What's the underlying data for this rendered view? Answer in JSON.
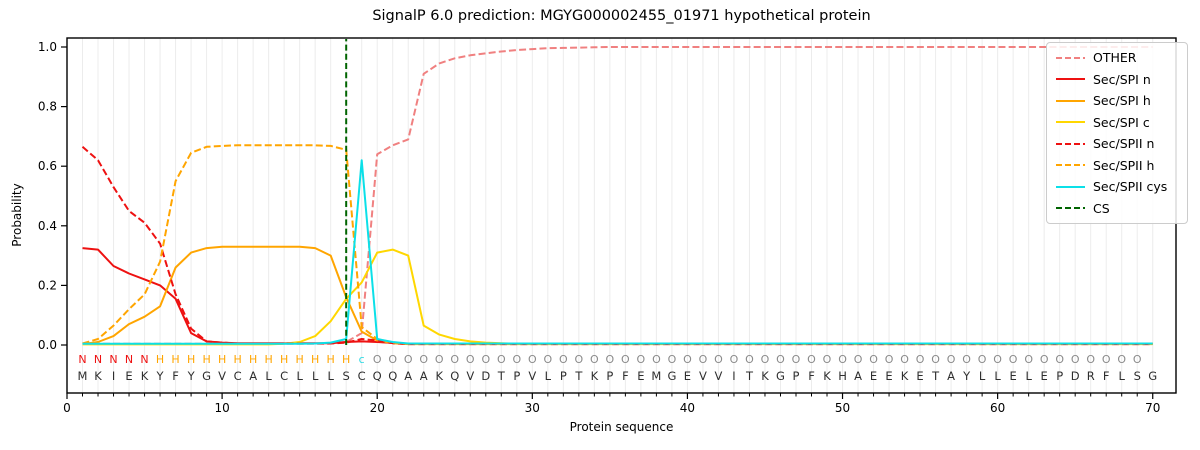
{
  "chart_data": {
    "type": "line",
    "title": "SignalP 6.0 prediction: MGYG000002455_01971 hypothetical protein",
    "xlabel": "Protein sequence",
    "ylabel": "Probability",
    "xlim": [
      0,
      71.5
    ],
    "ylim": [
      -0.16,
      1.03
    ],
    "xticks": [
      0,
      10,
      20,
      30,
      40,
      50,
      60,
      70
    ],
    "yticks": [
      0.0,
      0.2,
      0.4,
      0.6,
      0.8,
      1.0
    ],
    "grid": "vertical gridline at every residue 1-70",
    "legend_position": "upper right",
    "x_start": 1,
    "series": [
      {
        "name": "OTHER",
        "color": "#f08080",
        "dash": true,
        "values": [
          0.004,
          0.004,
          0.004,
          0.004,
          0.004,
          0.004,
          0.004,
          0.004,
          0.004,
          0.004,
          0.004,
          0.004,
          0.004,
          0.004,
          0.004,
          0.004,
          0.005,
          0.01,
          0.04,
          0.64,
          0.67,
          0.69,
          0.91,
          0.945,
          0.962,
          0.972,
          0.979,
          0.985,
          0.99,
          0.993,
          0.996,
          0.997,
          0.998,
          0.999,
          1.0,
          1.0,
          1.0,
          1.0,
          1.0,
          1.0,
          1.0,
          1.0,
          1.0,
          1.0,
          1.0,
          1.0,
          1.0,
          1.0,
          1.0,
          1.0,
          1.0,
          1.0,
          1.0,
          1.0,
          1.0,
          1.0,
          1.0,
          1.0,
          1.0,
          1.0,
          1.0,
          1.0,
          1.0,
          1.0,
          1.0,
          1.0,
          1.0,
          1.0,
          1.0,
          1.0
        ]
      },
      {
        "name": "Sec/SPI n",
        "color": "#ee1111",
        "dash": false,
        "values": [
          0.325,
          0.32,
          0.265,
          0.24,
          0.22,
          0.2,
          0.155,
          0.04,
          0.012,
          0.008,
          0.006,
          0.006,
          0.006,
          0.006,
          0.006,
          0.006,
          0.006,
          0.01,
          0.012,
          0.01,
          0.007,
          0.004,
          0.004,
          0.004,
          0.004,
          0.004,
          0.004,
          0.004,
          0.004,
          0.004,
          0.004,
          0.004,
          0.004,
          0.004,
          0.004,
          0.004,
          0.004,
          0.004,
          0.004,
          0.004,
          0.004,
          0.004,
          0.004,
          0.004,
          0.004,
          0.004,
          0.004,
          0.004,
          0.004,
          0.004,
          0.004,
          0.004,
          0.004,
          0.004,
          0.004,
          0.004,
          0.004,
          0.004,
          0.004,
          0.004,
          0.004,
          0.004,
          0.004,
          0.004,
          0.004,
          0.004,
          0.004,
          0.004,
          0.004,
          0.004
        ]
      },
      {
        "name": "Sec/SPI h",
        "color": "#ffa500",
        "dash": false,
        "values": [
          0.003,
          0.01,
          0.03,
          0.07,
          0.095,
          0.13,
          0.26,
          0.31,
          0.325,
          0.33,
          0.33,
          0.33,
          0.33,
          0.33,
          0.33,
          0.325,
          0.3,
          0.16,
          0.045,
          0.015,
          0.006,
          0.003,
          0.003,
          0.003,
          0.003,
          0.003,
          0.003,
          0.003,
          0.003,
          0.003,
          0.003,
          0.003,
          0.003,
          0.003,
          0.003,
          0.003,
          0.003,
          0.003,
          0.003,
          0.003,
          0.003,
          0.003,
          0.003,
          0.003,
          0.003,
          0.003,
          0.003,
          0.003,
          0.003,
          0.003,
          0.003,
          0.003,
          0.003,
          0.003,
          0.003,
          0.003,
          0.003,
          0.003,
          0.003,
          0.003,
          0.003,
          0.003,
          0.003,
          0.003,
          0.003,
          0.003,
          0.003,
          0.003,
          0.003,
          0.003
        ]
      },
      {
        "name": "Sec/SPI c",
        "color": "#ffd700",
        "dash": false,
        "values": [
          0.002,
          0.002,
          0.002,
          0.002,
          0.002,
          0.002,
          0.002,
          0.002,
          0.002,
          0.002,
          0.002,
          0.002,
          0.002,
          0.004,
          0.01,
          0.03,
          0.08,
          0.155,
          0.21,
          0.31,
          0.32,
          0.3,
          0.065,
          0.035,
          0.02,
          0.012,
          0.008,
          0.006,
          0.004,
          0.004,
          0.004,
          0.004,
          0.004,
          0.004,
          0.004,
          0.004,
          0.004,
          0.004,
          0.004,
          0.004,
          0.004,
          0.004,
          0.004,
          0.004,
          0.004,
          0.004,
          0.004,
          0.004,
          0.004,
          0.004,
          0.004,
          0.004,
          0.004,
          0.004,
          0.004,
          0.004,
          0.004,
          0.004,
          0.004,
          0.004,
          0.004,
          0.004,
          0.004,
          0.004,
          0.004,
          0.004,
          0.004,
          0.004,
          0.004,
          0.004
        ]
      },
      {
        "name": "Sec/SPII n",
        "color": "#ee1111",
        "dash": true,
        "values": [
          0.665,
          0.62,
          0.53,
          0.45,
          0.41,
          0.34,
          0.17,
          0.055,
          0.012,
          0.008,
          0.005,
          0.005,
          0.005,
          0.005,
          0.005,
          0.005,
          0.005,
          0.008,
          0.02,
          0.015,
          0.006,
          0.003,
          0.003,
          0.003,
          0.003,
          0.003,
          0.003,
          0.003,
          0.003,
          0.003,
          0.003,
          0.003,
          0.003,
          0.003,
          0.003,
          0.003,
          0.003,
          0.003,
          0.003,
          0.003,
          0.003,
          0.003,
          0.003,
          0.003,
          0.003,
          0.003,
          0.003,
          0.003,
          0.003,
          0.003,
          0.003,
          0.003,
          0.003,
          0.003,
          0.003,
          0.003,
          0.003,
          0.003,
          0.003,
          0.003,
          0.003,
          0.003,
          0.003,
          0.003,
          0.003,
          0.003,
          0.003,
          0.003,
          0.003,
          0.003
        ]
      },
      {
        "name": "Sec/SPII h",
        "color": "#ffa500",
        "dash": true,
        "values": [
          0.005,
          0.02,
          0.065,
          0.12,
          0.17,
          0.28,
          0.55,
          0.645,
          0.665,
          0.668,
          0.67,
          0.67,
          0.67,
          0.67,
          0.67,
          0.67,
          0.668,
          0.655,
          0.06,
          0.02,
          0.008,
          0.004,
          0.004,
          0.004,
          0.004,
          0.004,
          0.004,
          0.004,
          0.004,
          0.004,
          0.004,
          0.004,
          0.004,
          0.004,
          0.004,
          0.004,
          0.004,
          0.004,
          0.004,
          0.004,
          0.004,
          0.004,
          0.004,
          0.004,
          0.004,
          0.004,
          0.004,
          0.004,
          0.004,
          0.004,
          0.004,
          0.004,
          0.004,
          0.004,
          0.004,
          0.004,
          0.004,
          0.004,
          0.004,
          0.004,
          0.004,
          0.004,
          0.004,
          0.004,
          0.004,
          0.004,
          0.004,
          0.004,
          0.004,
          0.004
        ]
      },
      {
        "name": "Sec/SPII cys",
        "color": "#0be0e8",
        "dash": false,
        "values": [
          0.004,
          0.004,
          0.004,
          0.004,
          0.004,
          0.004,
          0.004,
          0.004,
          0.004,
          0.004,
          0.004,
          0.004,
          0.004,
          0.004,
          0.004,
          0.005,
          0.008,
          0.02,
          0.62,
          0.02,
          0.01,
          0.005,
          0.005,
          0.005,
          0.005,
          0.005,
          0.005,
          0.005,
          0.005,
          0.005,
          0.005,
          0.005,
          0.005,
          0.005,
          0.005,
          0.005,
          0.005,
          0.005,
          0.005,
          0.005,
          0.005,
          0.005,
          0.005,
          0.005,
          0.005,
          0.005,
          0.005,
          0.005,
          0.005,
          0.005,
          0.005,
          0.005,
          0.005,
          0.005,
          0.005,
          0.005,
          0.005,
          0.005,
          0.005,
          0.005,
          0.005,
          0.005,
          0.005,
          0.005,
          0.005,
          0.005,
          0.005,
          0.005,
          0.005,
          0.005
        ]
      },
      {
        "name": "CS",
        "color": "#006400",
        "dash": true,
        "vline_x": 18
      }
    ],
    "sequence": "MKIEKYFYGVCALCLLLSCQQAAKQVDTPVLPTKPFEMGEVVITKGPFKHAEEKETAYLLELEPDRFLSG",
    "annotation": "NNNNNHHHHHHHHHHHHHcOOOOOOOOOOOOOOOOOOOOOOOOOOOOOOOOOOOOOOOOOOOOOOOOOO",
    "annotation_colors": {
      "N": "#ee1111",
      "H": "#ffa500",
      "c": "#2bd9e3",
      "O": "#8a8a8a"
    },
    "sequence_color": "#2e2e2e",
    "cleavage_site_x": 18,
    "cys_peak": {
      "x": 19,
      "value": 0.62
    }
  }
}
